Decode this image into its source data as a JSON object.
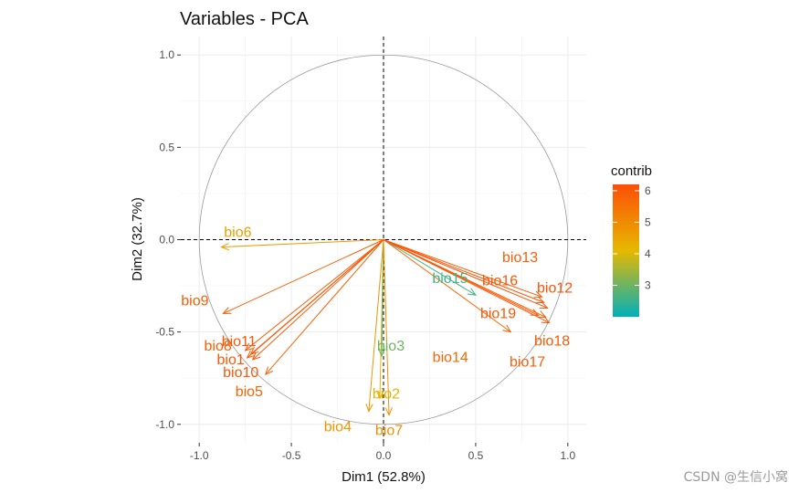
{
  "chart_data": {
    "type": "scatter",
    "subtype": "pca-variable-correlation-circle",
    "title": "Variables - PCA",
    "xlabel": "Dim1 (52.8%)",
    "ylabel": "Dim2 (32.7%)",
    "xlim": [
      -1.1,
      1.1
    ],
    "ylim": [
      -1.1,
      1.1
    ],
    "xticks": [
      -1.0,
      -0.5,
      0.0,
      0.5,
      1.0
    ],
    "xtick_labels": [
      "-1.0",
      "-0.5",
      "0.0",
      "0.5",
      "1.0"
    ],
    "yticks": [
      -1.0,
      -0.5,
      0.0,
      0.5,
      1.0
    ],
    "ytick_labels": [
      "-1.0",
      "-0.5",
      "0.0",
      "0.5",
      "1.0"
    ],
    "grid": true,
    "unit_circle": true,
    "variables": [
      {
        "name": "bio1",
        "x": -0.74,
        "y": -0.64,
        "contrib": 6.0
      },
      {
        "name": "bio2",
        "x": -0.02,
        "y": -0.86,
        "contrib": 4.2
      },
      {
        "name": "bio3",
        "x": -0.01,
        "y": -0.63,
        "contrib": 3.0
      },
      {
        "name": "bio4",
        "x": -0.08,
        "y": -0.93,
        "contrib": 4.8
      },
      {
        "name": "bio5",
        "x": -0.64,
        "y": -0.73,
        "contrib": 5.8
      },
      {
        "name": "bio6",
        "x": -0.88,
        "y": -0.04,
        "contrib": 4.6
      },
      {
        "name": "bio7",
        "x": 0.03,
        "y": -0.95,
        "contrib": 4.9
      },
      {
        "name": "bio8",
        "x": -0.75,
        "y": -0.6,
        "contrib": 5.9
      },
      {
        "name": "bio9",
        "x": -0.87,
        "y": -0.4,
        "contrib": 5.9
      },
      {
        "name": "bio10",
        "x": -0.71,
        "y": -0.65,
        "contrib": 6.0
      },
      {
        "name": "bio11",
        "x": -0.72,
        "y": -0.62,
        "contrib": 6.0
      },
      {
        "name": "bio12",
        "x": 0.89,
        "y": -0.37,
        "contrib": 6.1
      },
      {
        "name": "bio13",
        "x": 0.86,
        "y": -0.31,
        "contrib": 5.9
      },
      {
        "name": "bio14",
        "x": 0.69,
        "y": -0.5,
        "contrib": 5.7
      },
      {
        "name": "bio15",
        "x": 0.5,
        "y": -0.3,
        "contrib": 2.6
      },
      {
        "name": "bio16",
        "x": 0.87,
        "y": -0.34,
        "contrib": 6.0
      },
      {
        "name": "bio17",
        "x": 0.88,
        "y": -0.42,
        "contrib": 5.9
      },
      {
        "name": "bio18",
        "x": 0.9,
        "y": -0.45,
        "contrib": 6.0
      },
      {
        "name": "bio19",
        "x": 0.84,
        "y": -0.41,
        "contrib": 6.0
      }
    ],
    "legend": {
      "title": "contrib",
      "position": "right",
      "range": [
        2.0,
        6.2
      ],
      "ticks": [
        3,
        4,
        5,
        6
      ],
      "tick_labels": [
        "3",
        "4",
        "5",
        "6"
      ],
      "gradient": [
        "#00AFBB",
        "#E7B800",
        "#FC4E07"
      ]
    }
  },
  "watermark": "CSDN @生信小窝"
}
